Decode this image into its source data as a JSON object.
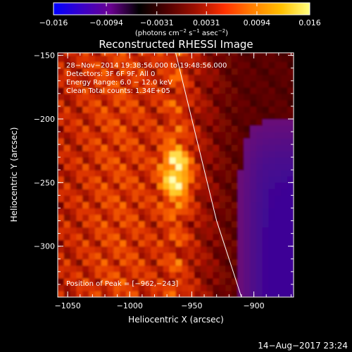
{
  "chart_data": {
    "type": "heatmap",
    "title": "Reconstructed RHESSI Image",
    "xlabel": "Heliocentric X (arcsec)",
    "ylabel": "Heliocentric Y (arcsec)",
    "xlim": [
      -1058,
      -868
    ],
    "ylim": [
      -340,
      -148
    ],
    "x_ticks": [
      {
        "value": -1050,
        "label": "−1050"
      },
      {
        "value": -1000,
        "label": "−1000"
      },
      {
        "value": -950,
        "label": "−950"
      },
      {
        "value": -900,
        "label": "−900"
      }
    ],
    "y_ticks": [
      {
        "value": -150,
        "label": "−150"
      },
      {
        "value": -200,
        "label": "−200"
      },
      {
        "value": -250,
        "label": "−250"
      },
      {
        "value": -300,
        "label": "−300"
      }
    ],
    "colorbar": {
      "range": [
        -0.016,
        0.016
      ],
      "title_parts": [
        "(photons cm",
        "−2",
        " s",
        "−1",
        " asec",
        "−2",
        ")"
      ],
      "ticks": [
        {
          "value": -0.016,
          "label": "−0.016"
        },
        {
          "value": -0.0094,
          "label": "−0.0094"
        },
        {
          "value": -0.0031,
          "label": "−0.0031"
        },
        {
          "value": 0.0031,
          "label": "0.0031"
        },
        {
          "value": 0.0094,
          "label": "0.0094"
        },
        {
          "value": 0.016,
          "label": "0.016"
        }
      ],
      "colors": [
        "#0000ff",
        "#3a00c8",
        "#6a0090",
        "#000000",
        "#500000",
        "#a01000",
        "#ff3000",
        "#ff8000",
        "#ffc000",
        "#ffff80"
      ]
    },
    "peak": [
      -962,
      -243
    ],
    "limb_line": [
      [
        -963,
        -148
      ],
      [
        -945,
        -220
      ],
      [
        -930,
        -280
      ],
      [
        -910,
        -340
      ]
    ],
    "annotations": [
      "28−Nov−2014 19:38:56.000 to 19:48:56.000",
      "Detectors: 3F 6F 9F, All 0",
      "Energy Range: 6.0 − 12.0 keV",
      "Clean    Total counts: 1.34E+05",
      "Position of Peak = [−962,−243]"
    ],
    "grid": false
  },
  "footer": {
    "date": "14−Aug−2017 23:24"
  }
}
